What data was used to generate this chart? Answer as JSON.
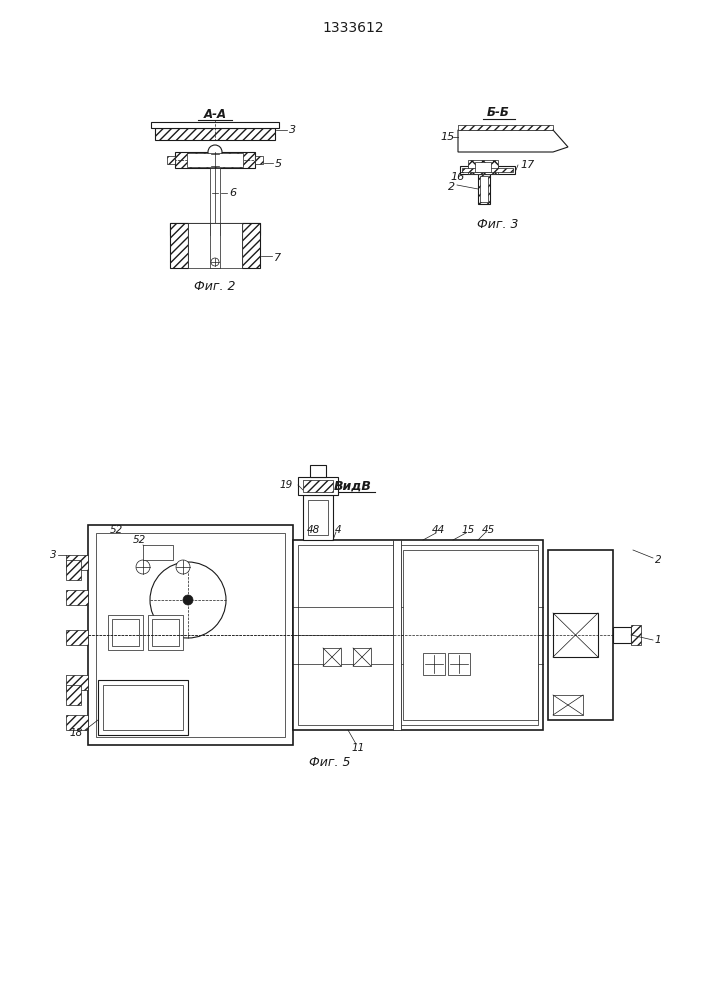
{
  "title": "1333612",
  "bg_color": "#ffffff",
  "lc": "#1a1a1a",
  "fig2_label": "Фиг. 2",
  "fig3_label": "Фиг. 3",
  "fig5_label": "Фиг. 5",
  "section_aa": "A-A",
  "section_bb": "Б-Б",
  "view_b": "ВидВ"
}
